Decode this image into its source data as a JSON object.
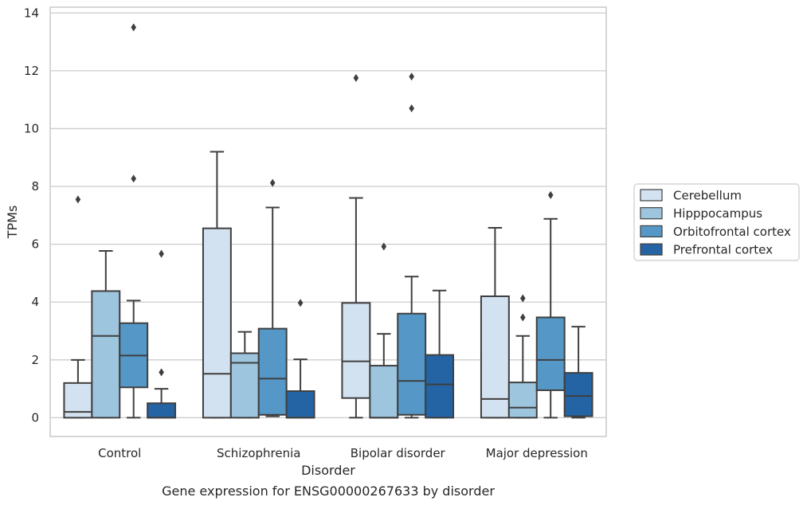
{
  "chart_data": {
    "type": "box",
    "title": "",
    "caption": "Gene expression for ENSG00000267633 by disorder",
    "xlabel": "Disorder",
    "ylabel": "TPMs",
    "ylim": [
      -0.65,
      14.2
    ],
    "yticks": [
      0,
      2,
      4,
      6,
      8,
      10,
      12,
      14
    ],
    "grid": true,
    "legend_position": "right",
    "categories": [
      "Control",
      "Schizophrenia",
      "Bipolar disorder",
      "Major depression"
    ],
    "series": [
      {
        "name": "Cerebellum",
        "color": "#d3e2f1",
        "boxes": [
          {
            "whislo": 0,
            "q1": 0,
            "med": 0.2,
            "q3": 1.2,
            "whishi": 2.0,
            "fliers": [
              7.55
            ]
          },
          {
            "whislo": 0,
            "q1": 0,
            "med": 1.52,
            "q3": 6.55,
            "whishi": 9.2,
            "fliers": []
          },
          {
            "whislo": 0,
            "q1": 0.68,
            "med": 1.95,
            "q3": 3.97,
            "whishi": 7.6,
            "fliers": [
              11.75
            ]
          },
          {
            "whislo": 0,
            "q1": 0,
            "med": 0.65,
            "q3": 4.2,
            "whishi": 6.57,
            "fliers": []
          }
        ]
      },
      {
        "name": "Hipppocampus",
        "color": "#9dc5de",
        "boxes": [
          {
            "whislo": 0,
            "q1": 0,
            "med": 2.83,
            "q3": 4.38,
            "whishi": 5.77,
            "fliers": []
          },
          {
            "whislo": 0,
            "q1": 0,
            "med": 1.9,
            "q3": 2.23,
            "whishi": 2.97,
            "fliers": []
          },
          {
            "whislo": 0,
            "q1": 0,
            "med": 0,
            "q3": 1.8,
            "whishi": 2.9,
            "fliers": [
              5.92
            ]
          },
          {
            "whislo": 0,
            "q1": 0,
            "med": 0.35,
            "q3": 1.22,
            "whishi": 2.83,
            "fliers": [
              3.47,
              4.13
            ]
          }
        ]
      },
      {
        "name": "Orbitofrontal cortex",
        "color": "#5598c7",
        "boxes": [
          {
            "whislo": 0,
            "q1": 1.05,
            "med": 2.15,
            "q3": 3.27,
            "whishi": 4.05,
            "fliers": [
              8.27,
              13.5
            ]
          },
          {
            "whislo": 0.05,
            "q1": 0.1,
            "med": 1.35,
            "q3": 3.08,
            "whishi": 7.27,
            "fliers": [
              8.12
            ]
          },
          {
            "whislo": 0,
            "q1": 0.1,
            "med": 1.27,
            "q3": 3.6,
            "whishi": 4.88,
            "fliers": [
              10.7,
              11.8
            ]
          },
          {
            "whislo": 0,
            "q1": 0.95,
            "med": 2.0,
            "q3": 3.47,
            "whishi": 6.88,
            "fliers": [
              7.7
            ]
          }
        ]
      },
      {
        "name": "Prefrontal cortex",
        "color": "#2464a5",
        "boxes": [
          {
            "whislo": 0,
            "q1": 0,
            "med": 0,
            "q3": 0.5,
            "whishi": 1.0,
            "fliers": [
              1.57,
              5.67
            ]
          },
          {
            "whislo": 0,
            "q1": 0,
            "med": 0,
            "q3": 0.92,
            "whishi": 2.02,
            "fliers": [
              3.97
            ]
          },
          {
            "whislo": 0,
            "q1": 0,
            "med": 1.15,
            "q3": 2.17,
            "whishi": 4.4,
            "fliers": []
          },
          {
            "whislo": 0,
            "q1": 0.05,
            "med": 0.75,
            "q3": 1.55,
            "whishi": 3.15,
            "fliers": []
          }
        ]
      }
    ]
  }
}
